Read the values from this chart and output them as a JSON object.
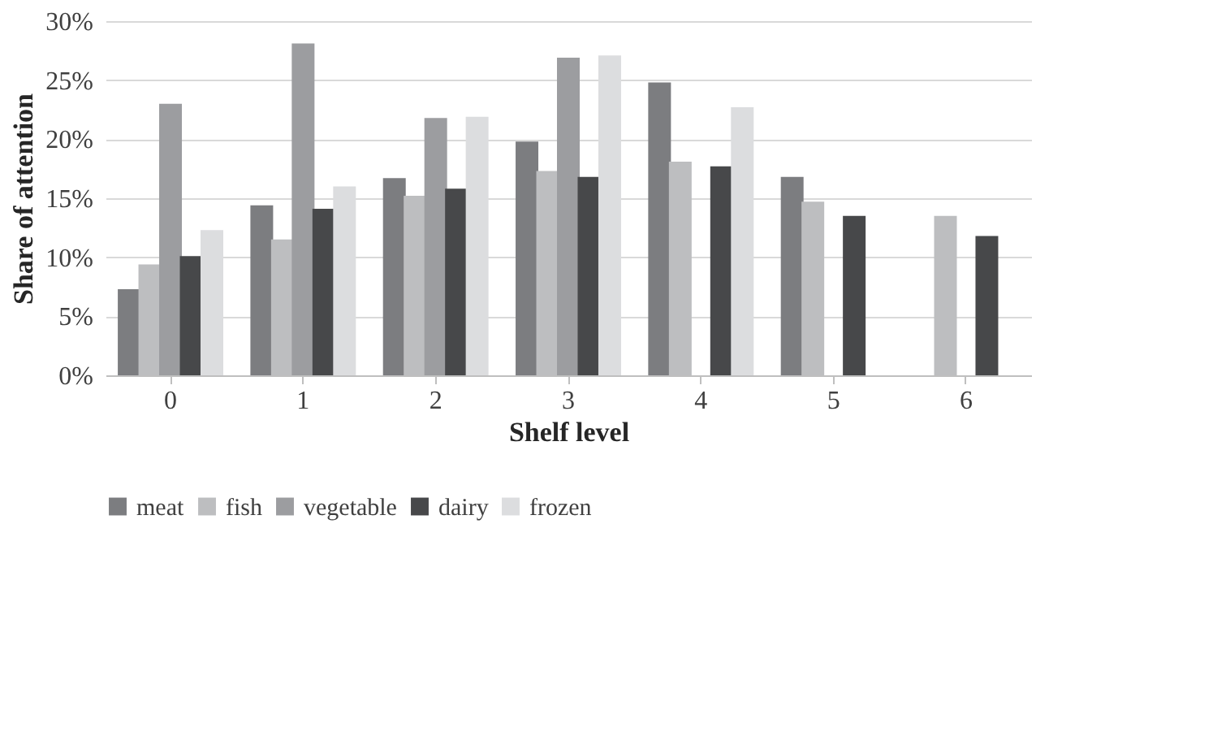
{
  "chart_data": {
    "type": "bar",
    "xlabel": "Shelf level",
    "ylabel": "Share of attention",
    "categories": [
      "0",
      "1",
      "2",
      "3",
      "4",
      "5",
      "6"
    ],
    "series": [
      {
        "name": "meat",
        "color": "#7c7d80",
        "values": [
          7.3,
          14.4,
          16.7,
          19.8,
          24.8,
          16.8,
          null
        ]
      },
      {
        "name": "fish",
        "color": "#bdbec0",
        "values": [
          9.4,
          11.5,
          15.2,
          17.3,
          18.1,
          14.7,
          13.5
        ]
      },
      {
        "name": "vegetable",
        "color": "#9c9da0",
        "values": [
          23.0,
          28.1,
          21.8,
          26.9,
          null,
          null,
          null
        ]
      },
      {
        "name": "dairy",
        "color": "#47484a",
        "values": [
          10.1,
          14.1,
          15.8,
          16.8,
          17.7,
          13.5,
          11.8
        ]
      },
      {
        "name": "frozen",
        "color": "#dcdddf",
        "values": [
          12.3,
          16.0,
          21.9,
          27.1,
          22.7,
          null,
          null
        ]
      }
    ],
    "ylim": [
      0,
      30
    ],
    "yticks": [
      {
        "value": 0,
        "label": "0%"
      },
      {
        "value": 5,
        "label": "5%"
      },
      {
        "value": 10,
        "label": "10%"
      },
      {
        "value": 15,
        "label": "15%"
      },
      {
        "value": 20,
        "label": "20%"
      },
      {
        "value": 25,
        "label": "25%"
      },
      {
        "value": 30,
        "label": "30%"
      }
    ],
    "grid": "y",
    "legend": "bottom"
  }
}
